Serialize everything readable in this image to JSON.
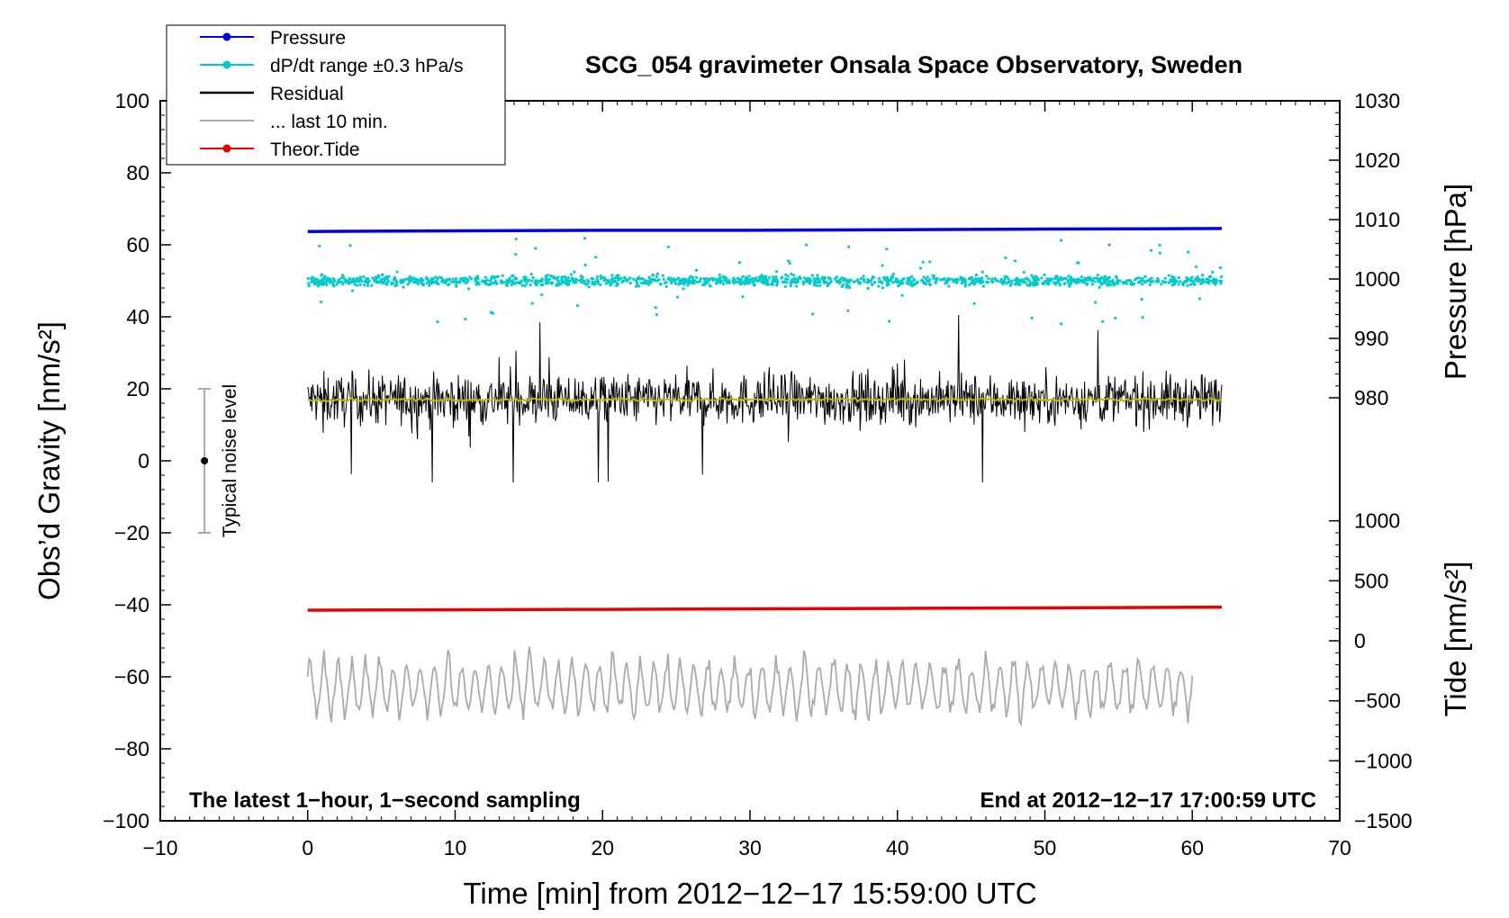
{
  "chart_data": {
    "type": "line",
    "title": "SCG_054 gravimeter Onsala Space Observatory, Sweden",
    "xlabel": "Time [min] from 2012−12−17 15:59:00 UTC",
    "ylabel_left": "Obs’d Gravity [nm/s²]",
    "ylabel_right_top": "Pressure [hPa]",
    "ylabel_right_bottom": "Tide [nm/s²]",
    "xlim": [
      -10,
      70
    ],
    "ylim_left": [
      -100,
      100
    ],
    "ylim_pressure": [
      960,
      1030
    ],
    "ylim_tide": [
      -1500,
      1500
    ],
    "x_ticks": [
      "−10",
      "0",
      "10",
      "20",
      "30",
      "40",
      "50",
      "60",
      "70"
    ],
    "x_tick_values": [
      -10,
      0,
      10,
      20,
      30,
      40,
      50,
      60,
      70
    ],
    "y_left_ticks": [
      "100",
      "80",
      "60",
      "40",
      "20",
      "0",
      "−20",
      "−40",
      "−60",
      "−80",
      "−100"
    ],
    "y_left_tick_values": [
      100,
      80,
      60,
      40,
      20,
      0,
      -20,
      -40,
      -60,
      -80,
      -100
    ],
    "pressure_ticks": [
      "1030",
      "1020",
      "1010",
      "1000",
      "990",
      "980"
    ],
    "pressure_tick_values": [
      1030,
      1020,
      1010,
      1000,
      990,
      980
    ],
    "tide_ticks": [
      "1000",
      "500",
      "0",
      "−500",
      "−1000",
      "−1500"
    ],
    "tide_tick_values": [
      1000,
      500,
      0,
      -500,
      -1000,
      -1500
    ],
    "grid": false,
    "legend_position": "top-left",
    "legend": [
      {
        "label": "Pressure",
        "color": "#0000ee",
        "style": "line-dot"
      },
      {
        "label": "dP/dt range ±0.3 hPa/s",
        "color": "#00cccc",
        "style": "line-dot"
      },
      {
        "label": "Residual",
        "color": "#000000",
        "style": "line"
      },
      {
        "label": "... last 10 min.",
        "color": "#aaaaaa",
        "style": "line"
      },
      {
        "label": "Theor.Tide",
        "color": "#ee0000",
        "style": "line-dot"
      }
    ],
    "annotations": {
      "bottom_left": "The latest 1−hour, 1−second sampling",
      "bottom_right": "End at 2012−12−17 17:00:59 UTC",
      "noise_label": "Typical noise level"
    },
    "noise_bar": {
      "x": -7,
      "center": 0,
      "low": -20,
      "high": 20
    },
    "series": [
      {
        "name": "Pressure",
        "axis": "pressure",
        "color": "#0000ee",
        "x": [
          0,
          10,
          20,
          30,
          40,
          50,
          62
        ],
        "values": [
          1008.0,
          1008.1,
          1008.2,
          1008.2,
          1008.3,
          1008.4,
          1008.5
        ]
      },
      {
        "name": "dP/dt range ±0.3 hPa/s",
        "axis": "left",
        "color": "#00cccc",
        "x_range": [
          0,
          62
        ],
        "center": 50,
        "typical_spread": 3,
        "max_spread": 12
      },
      {
        "name": "Residual",
        "axis": "left",
        "color": "#000000",
        "x_range": [
          0,
          62
        ],
        "center": 17,
        "typical_spread": 10,
        "max": 43,
        "min": -6
      },
      {
        "name": "Residual smoothed",
        "axis": "left",
        "color": "#bbbb00",
        "x_range": [
          0,
          62
        ],
        "center": 17
      },
      {
        "name": "Theor.Tide",
        "axis": "tide",
        "color": "#ee0000",
        "x": [
          0,
          20,
          40,
          62
        ],
        "values": [
          255,
          262,
          270,
          280
        ]
      },
      {
        "name": "... last 10 min.",
        "axis": "left",
        "color": "#aaaaaa",
        "x_range": [
          0,
          60
        ],
        "center": -63,
        "max": -43,
        "min": -84
      }
    ]
  }
}
